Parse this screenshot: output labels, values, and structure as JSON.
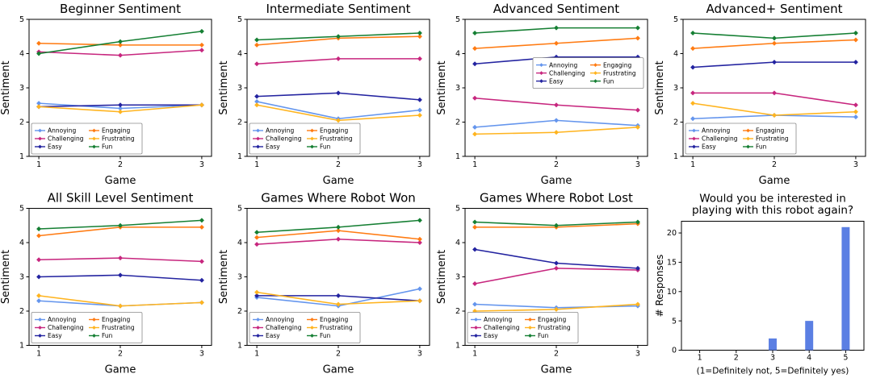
{
  "page": {
    "background": "#ffffff"
  },
  "chart_data": [
    {
      "id": "beginner",
      "type": "line",
      "title": "Beginner Sentiment",
      "xlabel": "Game",
      "ylabel": "Sentiment",
      "x": [
        1,
        2,
        3
      ],
      "ylim": [
        1,
        5
      ],
      "yticks": [
        1,
        2,
        3,
        4,
        5
      ],
      "legend_pos": "lower-left",
      "series": [
        {
          "name": "Annoying",
          "color": "#6495ED",
          "values": [
            2.55,
            2.4,
            2.5
          ]
        },
        {
          "name": "Challenging",
          "color": "#C7267E",
          "values": [
            4.05,
            3.95,
            4.1
          ]
        },
        {
          "name": "Easy",
          "color": "#2323A0",
          "values": [
            2.45,
            2.5,
            2.5
          ]
        },
        {
          "name": "Engaging",
          "color": "#FF7B12",
          "values": [
            4.3,
            4.25,
            4.25
          ]
        },
        {
          "name": "Frustrating",
          "color": "#FFB41F",
          "values": [
            2.45,
            2.3,
            2.5
          ]
        },
        {
          "name": "Fun",
          "color": "#157F33",
          "values": [
            4.0,
            4.35,
            4.65
          ]
        }
      ]
    },
    {
      "id": "intermediate",
      "type": "line",
      "title": "Intermediate Sentiment",
      "xlabel": "Game",
      "ylabel": "Sentiment",
      "x": [
        1,
        2,
        3
      ],
      "ylim": [
        1,
        5
      ],
      "yticks": [
        1,
        2,
        3,
        4,
        5
      ],
      "legend_pos": "lower-left",
      "series": [
        {
          "name": "Annoying",
          "color": "#6495ED",
          "values": [
            2.6,
            2.1,
            2.35
          ]
        },
        {
          "name": "Challenging",
          "color": "#C7267E",
          "values": [
            3.7,
            3.85,
            3.85
          ]
        },
        {
          "name": "Easy",
          "color": "#2323A0",
          "values": [
            2.75,
            2.85,
            2.65
          ]
        },
        {
          "name": "Engaging",
          "color": "#FF7B12",
          "values": [
            4.25,
            4.45,
            4.5
          ]
        },
        {
          "name": "Frustrating",
          "color": "#FFB41F",
          "values": [
            2.5,
            2.05,
            2.2
          ]
        },
        {
          "name": "Fun",
          "color": "#157F33",
          "values": [
            4.4,
            4.5,
            4.6
          ]
        }
      ]
    },
    {
      "id": "advanced",
      "type": "line",
      "title": "Advanced Sentiment",
      "xlabel": "Game",
      "ylabel": "Sentiment",
      "x": [
        1,
        2,
        3
      ],
      "ylim": [
        1,
        5
      ],
      "yticks": [
        1,
        2,
        3,
        4,
        5
      ],
      "legend_pos": "center-right",
      "series": [
        {
          "name": "Annoying",
          "color": "#6495ED",
          "values": [
            1.85,
            2.05,
            1.9
          ]
        },
        {
          "name": "Challenging",
          "color": "#C7267E",
          "values": [
            2.7,
            2.5,
            2.35
          ]
        },
        {
          "name": "Easy",
          "color": "#2323A0",
          "values": [
            3.7,
            3.9,
            3.9
          ]
        },
        {
          "name": "Engaging",
          "color": "#FF7B12",
          "values": [
            4.15,
            4.3,
            4.45
          ]
        },
        {
          "name": "Frustrating",
          "color": "#FFB41F",
          "values": [
            1.65,
            1.7,
            1.85
          ]
        },
        {
          "name": "Fun",
          "color": "#157F33",
          "values": [
            4.6,
            4.75,
            4.75
          ]
        }
      ]
    },
    {
      "id": "advanced-plus",
      "type": "line",
      "title": "Advanced+ Sentiment",
      "xlabel": "Game",
      "ylabel": "Sentiment",
      "x": [
        1,
        2,
        3
      ],
      "ylim": [
        1,
        5
      ],
      "yticks": [
        1,
        2,
        3,
        4,
        5
      ],
      "legend_pos": "lower-left",
      "series": [
        {
          "name": "Annoying",
          "color": "#6495ED",
          "values": [
            2.1,
            2.2,
            2.15
          ]
        },
        {
          "name": "Challenging",
          "color": "#C7267E",
          "values": [
            2.85,
            2.85,
            2.5
          ]
        },
        {
          "name": "Easy",
          "color": "#2323A0",
          "values": [
            3.6,
            3.75,
            3.75
          ]
        },
        {
          "name": "Engaging",
          "color": "#FF7B12",
          "values": [
            4.15,
            4.3,
            4.4
          ]
        },
        {
          "name": "Frustrating",
          "color": "#FFB41F",
          "values": [
            2.55,
            2.2,
            2.3
          ]
        },
        {
          "name": "Fun",
          "color": "#157F33",
          "values": [
            4.6,
            4.45,
            4.6
          ]
        }
      ]
    },
    {
      "id": "all-skill",
      "type": "line",
      "title": "All Skill Level Sentiment",
      "xlabel": "Game",
      "ylabel": "Sentiment",
      "x": [
        1,
        2,
        3
      ],
      "ylim": [
        1,
        5
      ],
      "yticks": [
        1,
        2,
        3,
        4,
        5
      ],
      "legend_pos": "lower-left",
      "series": [
        {
          "name": "Annoying",
          "color": "#6495ED",
          "values": [
            2.3,
            2.15,
            2.25
          ]
        },
        {
          "name": "Challenging",
          "color": "#C7267E",
          "values": [
            3.5,
            3.55,
            3.45
          ]
        },
        {
          "name": "Easy",
          "color": "#2323A0",
          "values": [
            3.0,
            3.05,
            2.9
          ]
        },
        {
          "name": "Engaging",
          "color": "#FF7B12",
          "values": [
            4.2,
            4.45,
            4.45
          ]
        },
        {
          "name": "Frustrating",
          "color": "#FFB41F",
          "values": [
            2.45,
            2.15,
            2.25
          ]
        },
        {
          "name": "Fun",
          "color": "#157F33",
          "values": [
            4.4,
            4.5,
            4.65
          ]
        }
      ]
    },
    {
      "id": "robot-won",
      "type": "line",
      "title": "Games Where Robot Won",
      "xlabel": "Game",
      "ylabel": "Sentiment",
      "x": [
        1,
        2,
        3
      ],
      "ylim": [
        1,
        5
      ],
      "yticks": [
        1,
        2,
        3,
        4,
        5
      ],
      "legend_pos": "lower-left",
      "series": [
        {
          "name": "Annoying",
          "color": "#6495ED",
          "values": [
            2.4,
            2.15,
            2.65
          ]
        },
        {
          "name": "Challenging",
          "color": "#C7267E",
          "values": [
            3.95,
            4.1,
            4.0
          ]
        },
        {
          "name": "Easy",
          "color": "#2323A0",
          "values": [
            2.45,
            2.45,
            2.3
          ]
        },
        {
          "name": "Engaging",
          "color": "#FF7B12",
          "values": [
            4.15,
            4.35,
            4.1
          ]
        },
        {
          "name": "Frustrating",
          "color": "#FFB41F",
          "values": [
            2.55,
            2.2,
            2.3
          ]
        },
        {
          "name": "Fun",
          "color": "#157F33",
          "values": [
            4.3,
            4.45,
            4.65
          ]
        }
      ]
    },
    {
      "id": "robot-lost",
      "type": "line",
      "title": "Games Where Robot Lost",
      "xlabel": "Game",
      "ylabel": "Sentiment",
      "x": [
        1,
        2,
        3
      ],
      "ylim": [
        1,
        5
      ],
      "yticks": [
        1,
        2,
        3,
        4,
        5
      ],
      "legend_pos": "lower-left",
      "series": [
        {
          "name": "Annoying",
          "color": "#6495ED",
          "values": [
            2.2,
            2.1,
            2.15
          ]
        },
        {
          "name": "Challenging",
          "color": "#C7267E",
          "values": [
            2.8,
            3.25,
            3.2
          ]
        },
        {
          "name": "Easy",
          "color": "#2323A0",
          "values": [
            3.8,
            3.4,
            3.25
          ]
        },
        {
          "name": "Engaging",
          "color": "#FF7B12",
          "values": [
            4.45,
            4.45,
            4.55
          ]
        },
        {
          "name": "Frustrating",
          "color": "#FFB41F",
          "values": [
            2.0,
            2.05,
            2.2
          ]
        },
        {
          "name": "Fun",
          "color": "#157F33",
          "values": [
            4.6,
            4.5,
            4.6
          ]
        }
      ]
    },
    {
      "id": "play-again",
      "type": "bar",
      "title": "Would you be interested in playing with this robot again?",
      "title_lines": [
        "Would you be interested in",
        "playing with this robot again?"
      ],
      "xlabel": "(1=Definitely not, 5=Definitely yes)",
      "ylabel": "# Responses",
      "categories": [
        1,
        2,
        3,
        4,
        5
      ],
      "values": [
        0,
        0,
        2,
        5,
        21
      ],
      "ylim": [
        0,
        22
      ],
      "yticks": [
        0,
        5,
        10,
        15,
        20
      ],
      "bar_color": "#5B7FE3"
    }
  ]
}
